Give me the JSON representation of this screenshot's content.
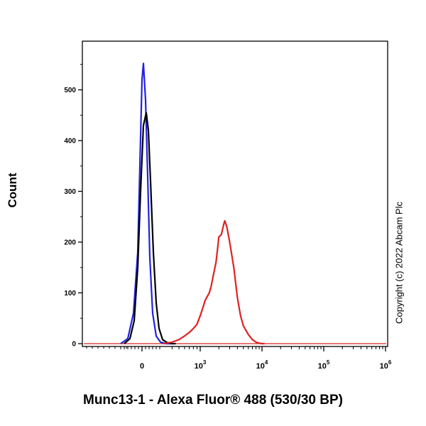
{
  "chart_data": {
    "type": "line",
    "xlabel": "Munc13-1 - Alexa Fluor® 488 (530/30 BP)",
    "ylabel": "Count",
    "y_ticks": [
      0,
      100,
      200,
      300,
      400,
      500
    ],
    "ylim": [
      0,
      580
    ],
    "x_scale": "biexponential",
    "x_ticks": [
      {
        "value": 0,
        "label": "0",
        "exp": ""
      },
      {
        "value": 1000,
        "label": "10",
        "exp": "3"
      },
      {
        "value": 10000,
        "label": "10",
        "exp": "4"
      },
      {
        "value": 100000,
        "label": "10",
        "exp": "5"
      },
      {
        "value": 1000000,
        "label": "10",
        "exp": "6"
      }
    ],
    "grid": false,
    "legend": "none",
    "series": [
      {
        "color": "#2222dd",
        "x": [
          -300,
          -200,
          -120,
          -60,
          -30,
          0,
          20,
          50,
          80,
          110,
          150,
          200,
          260,
          330,
          400
        ],
        "y": [
          0,
          10,
          60,
          180,
          350,
          520,
          552,
          480,
          330,
          170,
          60,
          15,
          3,
          0,
          0
        ]
      },
      {
        "color": "#000000",
        "x": [
          -250,
          -170,
          -110,
          -60,
          -20,
          20,
          60,
          90,
          120,
          160,
          200,
          240,
          290,
          340,
          400,
          450
        ],
        "y": [
          0,
          10,
          45,
          150,
          300,
          430,
          455,
          420,
          320,
          180,
          80,
          30,
          8,
          2,
          0,
          0
        ]
      },
      {
        "color": "#dd2222",
        "x": [
          300,
          400,
          500,
          600,
          700,
          800,
          900,
          1000,
          1100,
          1200,
          1400,
          1500,
          1600,
          1800,
          1900,
          2000,
          2200,
          2400,
          2500,
          2700,
          3000,
          3500,
          4000,
          4500,
          5000,
          6000,
          7000,
          8000,
          9000,
          10000,
          11000
        ],
        "y": [
          0,
          3,
          8,
          15,
          22,
          30,
          38,
          55,
          70,
          85,
          100,
          112,
          130,
          160,
          185,
          210,
          215,
          235,
          242,
          230,
          200,
          150,
          90,
          55,
          35,
          18,
          8,
          3,
          1,
          0,
          0
        ]
      }
    ]
  },
  "copyright": "Copyright (c) 2022 Abcam Plc"
}
